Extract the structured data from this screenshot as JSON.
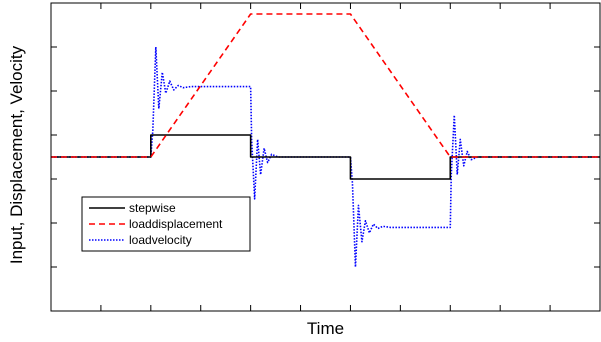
{
  "chart_data": {
    "type": "line",
    "title": "",
    "xlabel": "Time",
    "ylabel": "Input, Displacement, Velocity",
    "xlim": [
      0,
      11
    ],
    "ylim": [
      -7,
      7
    ],
    "x_ticks": [
      1,
      2,
      3,
      4,
      5,
      6,
      7,
      8,
      9,
      10
    ],
    "y_ticks": [
      -5,
      -3,
      -1,
      1,
      3,
      5
    ],
    "grid": false,
    "tick_labels_shown": false,
    "legend_position": "lower-left",
    "series": [
      {
        "name": "stepwise",
        "color": "#000000",
        "style": "solid",
        "points": [
          [
            0,
            0
          ],
          [
            2,
            0
          ],
          [
            2,
            1
          ],
          [
            4,
            1
          ],
          [
            4,
            0
          ],
          [
            6,
            0
          ],
          [
            6,
            -1
          ],
          [
            8,
            -1
          ],
          [
            8,
            0
          ],
          [
            11,
            0
          ]
        ]
      },
      {
        "name": "loaddisplacement",
        "color": "#ff0000",
        "style": "dashed",
        "points": [
          [
            0,
            0
          ],
          [
            2,
            0
          ],
          [
            4,
            6.5
          ],
          [
            6,
            6.5
          ],
          [
            8,
            0
          ],
          [
            11,
            0
          ]
        ]
      },
      {
        "name": "loadvelocity",
        "color": "#0000ff",
        "style": "dotted",
        "points": [
          [
            0,
            0
          ],
          [
            2,
            0
          ],
          [
            2.04,
            1.2
          ],
          [
            2.1,
            5.0
          ],
          [
            2.16,
            2.2
          ],
          [
            2.23,
            3.85
          ],
          [
            2.3,
            2.9
          ],
          [
            2.38,
            3.45
          ],
          [
            2.46,
            3.05
          ],
          [
            2.55,
            3.25
          ],
          [
            2.65,
            3.15
          ],
          [
            2.8,
            3.2
          ],
          [
            4,
            3.2
          ],
          [
            4.02,
            0.8
          ],
          [
            4.08,
            -1.9
          ],
          [
            4.14,
            0.8
          ],
          [
            4.2,
            -0.8
          ],
          [
            4.27,
            0.4
          ],
          [
            4.34,
            -0.25
          ],
          [
            4.42,
            0.12
          ],
          [
            4.55,
            0
          ],
          [
            6,
            0
          ],
          [
            6.04,
            -1.2
          ],
          [
            6.1,
            -5.0
          ],
          [
            6.16,
            -2.2
          ],
          [
            6.23,
            -3.85
          ],
          [
            6.3,
            -2.9
          ],
          [
            6.38,
            -3.45
          ],
          [
            6.46,
            -3.05
          ],
          [
            6.55,
            -3.25
          ],
          [
            6.65,
            -3.15
          ],
          [
            6.8,
            -3.2
          ],
          [
            8,
            -3.2
          ],
          [
            8.02,
            -0.8
          ],
          [
            8.08,
            1.9
          ],
          [
            8.14,
            -0.8
          ],
          [
            8.2,
            0.8
          ],
          [
            8.27,
            -0.4
          ],
          [
            8.34,
            0.25
          ],
          [
            8.42,
            -0.12
          ],
          [
            8.55,
            0
          ],
          [
            11,
            0
          ]
        ]
      }
    ]
  }
}
